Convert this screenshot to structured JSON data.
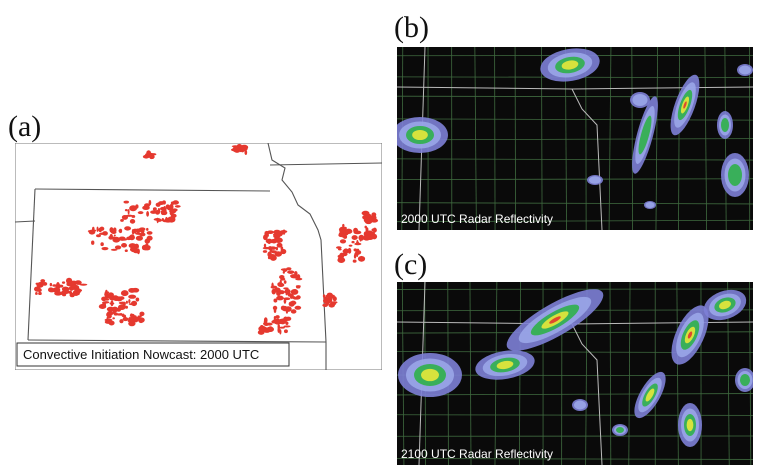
{
  "panels": [
    {
      "label": "(a)",
      "caption": "Convective Initiation Nowcast: 2000 UTC"
    },
    {
      "label": "(b)",
      "caption": "2000 UTC Radar Reflectivity"
    },
    {
      "label": "(c)",
      "caption": "2100 UTC Radar Reflectivity"
    }
  ]
}
